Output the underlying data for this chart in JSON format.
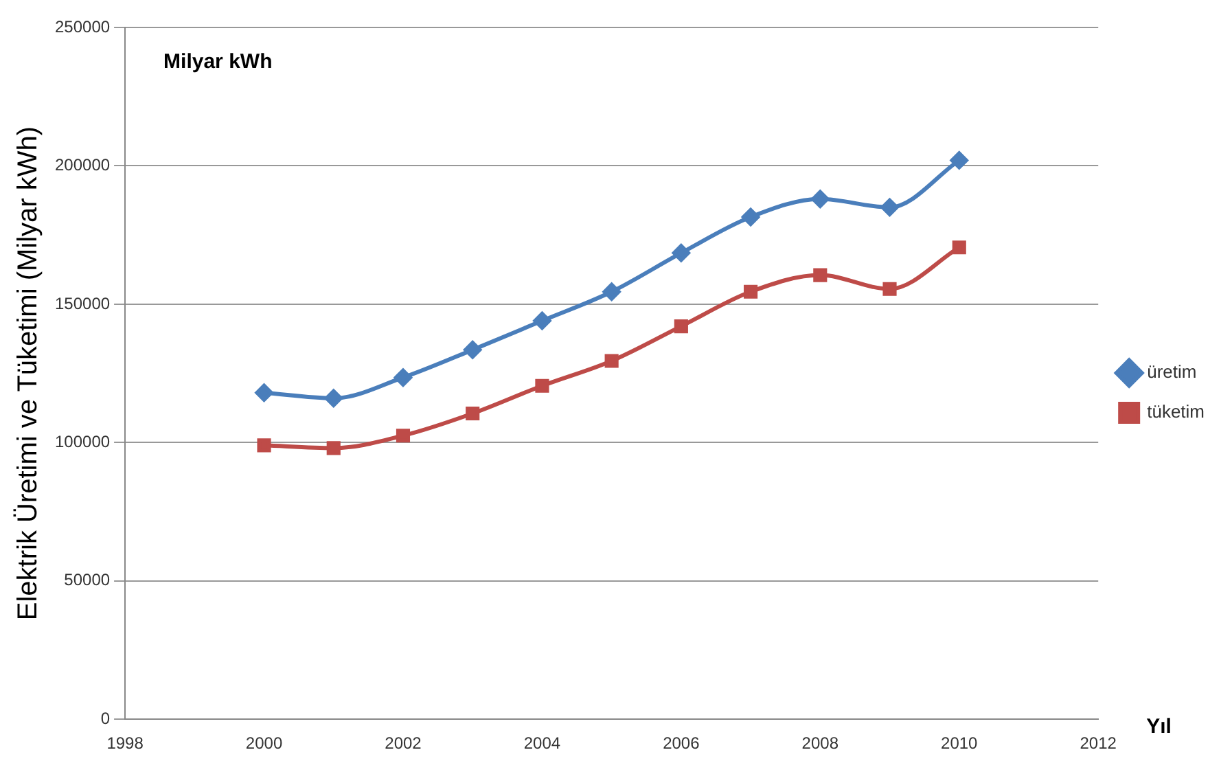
{
  "chart_data": {
    "type": "line",
    "ylabel": "Elektrik Üretimi ve Tüketimi (Milyar kWh)",
    "xlabel": "Yıl",
    "annotations": [
      "Milyar kWh"
    ],
    "x": [
      2000,
      2001,
      2002,
      2003,
      2004,
      2005,
      2006,
      2007,
      2008,
      2009,
      2010
    ],
    "series": [
      {
        "name": "üretim",
        "color": "#4a7ebb",
        "marker": "diamond",
        "values": [
          118000,
          116000,
          123500,
          133500,
          144000,
          154500,
          168500,
          181500,
          188000,
          185000,
          202000
        ]
      },
      {
        "name": "tüketim",
        "color": "#be4b48",
        "marker": "square",
        "values": [
          99000,
          98000,
          102500,
          110500,
          120500,
          129500,
          142000,
          154500,
          160500,
          155500,
          170500
        ]
      }
    ],
    "xlim": [
      1998,
      2012
    ],
    "xticks": [
      1998,
      2000,
      2002,
      2004,
      2006,
      2008,
      2010,
      2012
    ],
    "ylim": [
      0,
      250000
    ],
    "yticks": [
      0,
      50000,
      100000,
      150000,
      200000,
      250000
    ],
    "grid": "y",
    "legend": "right",
    "line_style": "solid"
  }
}
